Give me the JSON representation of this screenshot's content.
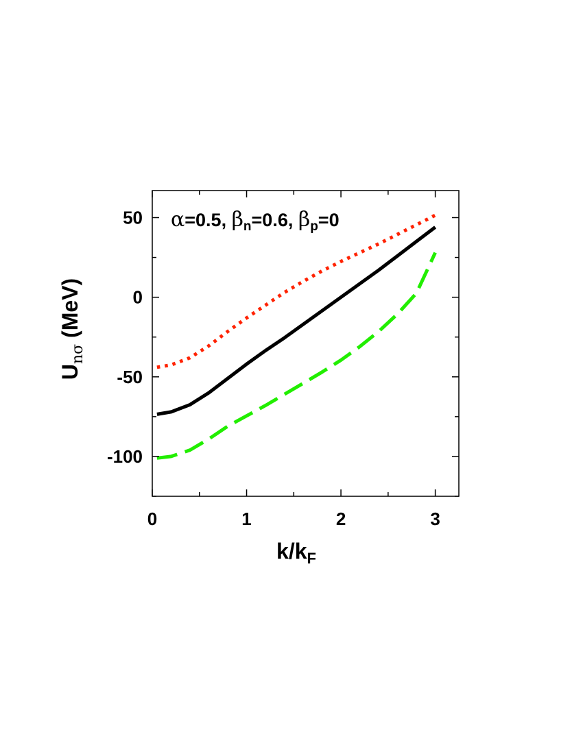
{
  "chart_data": {
    "type": "line",
    "title": "",
    "xlabel": {
      "main": "k/k",
      "sub": "F"
    },
    "ylabel": {
      "main": "U",
      "sub": "nσ",
      "suffix": " (MeV)"
    },
    "xlim": [
      0,
      3.25
    ],
    "ylim": [
      -125,
      67
    ],
    "xticks": [
      0,
      1,
      2,
      3
    ],
    "xtick_labels": [
      "0",
      "1",
      "2",
      "3"
    ],
    "yticks": [
      -100,
      -50,
      0,
      50
    ],
    "ytick_labels": [
      "-100",
      "-50",
      "0",
      "50"
    ],
    "x_minor_step": 0.5,
    "y_minor_step": 25,
    "grid": false,
    "legend": "none",
    "annotation": {
      "parts": [
        {
          "text": "α",
          "greek": true
        },
        {
          "text": "=0.5, "
        },
        {
          "text": "β",
          "greek": true
        },
        {
          "text": "n",
          "sub": true
        },
        {
          "text": "=0.6, "
        },
        {
          "text": "β",
          "greek": true
        },
        {
          "text": "p",
          "sub": true
        },
        {
          "text": "=0"
        }
      ]
    },
    "series": [
      {
        "style": "dotted",
        "color": "#ff2200",
        "x": [
          0.05,
          0.2,
          0.4,
          0.6,
          0.8,
          1.0,
          1.2,
          1.4,
          1.6,
          1.8,
          2.0,
          2.2,
          2.4,
          2.6,
          2.8,
          3.0
        ],
        "y": [
          -44,
          -42.5,
          -38,
          -30.5,
          -21.5,
          -13,
          -5,
          3,
          10,
          16.5,
          22.5,
          28,
          33.5,
          39.5,
          45.5,
          51.5
        ]
      },
      {
        "style": "solid",
        "color": "#000000",
        "x": [
          0.05,
          0.2,
          0.4,
          0.6,
          0.8,
          1.0,
          1.2,
          1.4,
          1.6,
          1.8,
          2.0,
          2.2,
          2.4,
          2.6,
          2.8,
          3.0
        ],
        "y": [
          -73.5,
          -72,
          -67.5,
          -60,
          -51,
          -42,
          -33.5,
          -25.5,
          -17,
          -8.5,
          0,
          8.5,
          17,
          26,
          35,
          44
        ]
      },
      {
        "style": "dashed",
        "color": "#22ee00",
        "x": [
          0.05,
          0.2,
          0.4,
          0.6,
          0.8,
          1.0,
          1.2,
          1.4,
          1.6,
          1.8,
          2.0,
          2.2,
          2.4,
          2.6,
          2.8,
          3.0
        ],
        "y": [
          -101,
          -100,
          -96,
          -89,
          -81,
          -74.5,
          -68,
          -61,
          -54,
          -47,
          -39.5,
          -31,
          -21.5,
          -10.5,
          2.5,
          28
        ]
      }
    ]
  }
}
